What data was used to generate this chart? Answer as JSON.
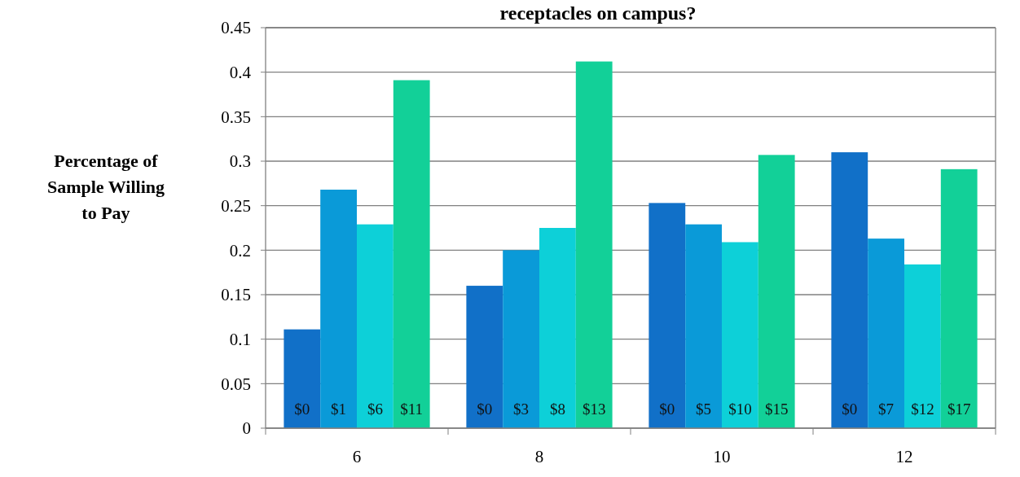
{
  "chart_data": {
    "type": "bar",
    "title": "receptacles on campus?",
    "ylabel": "Percentage of Sample Willing to Pay",
    "categories": [
      "6",
      "8",
      "10",
      "12"
    ],
    "series": [
      {
        "color": "#1170c8",
        "values": [
          0.111,
          0.16,
          0.253,
          0.31
        ]
      },
      {
        "color": "#0a9ad8",
        "values": [
          0.268,
          0.2,
          0.229,
          0.213
        ]
      },
      {
        "color": "#0dd0d8",
        "values": [
          0.229,
          0.225,
          0.209,
          0.184
        ]
      },
      {
        "color": "#12d098",
        "values": [
          0.391,
          0.412,
          0.307,
          0.291
        ]
      }
    ],
    "annotations": [
      "$0",
      "$1",
      "$6",
      "$11",
      "$0",
      "$3",
      "$8",
      "$13",
      "$0",
      "$5",
      "$10",
      "$15",
      "$0",
      "$7",
      "$12",
      "$17"
    ],
    "ylim": [
      0,
      0.45
    ],
    "yticks": [
      0,
      0.05,
      0.1,
      0.15,
      0.2,
      0.25,
      0.3,
      0.35,
      0.4,
      0.45
    ],
    "grid": "y"
  }
}
